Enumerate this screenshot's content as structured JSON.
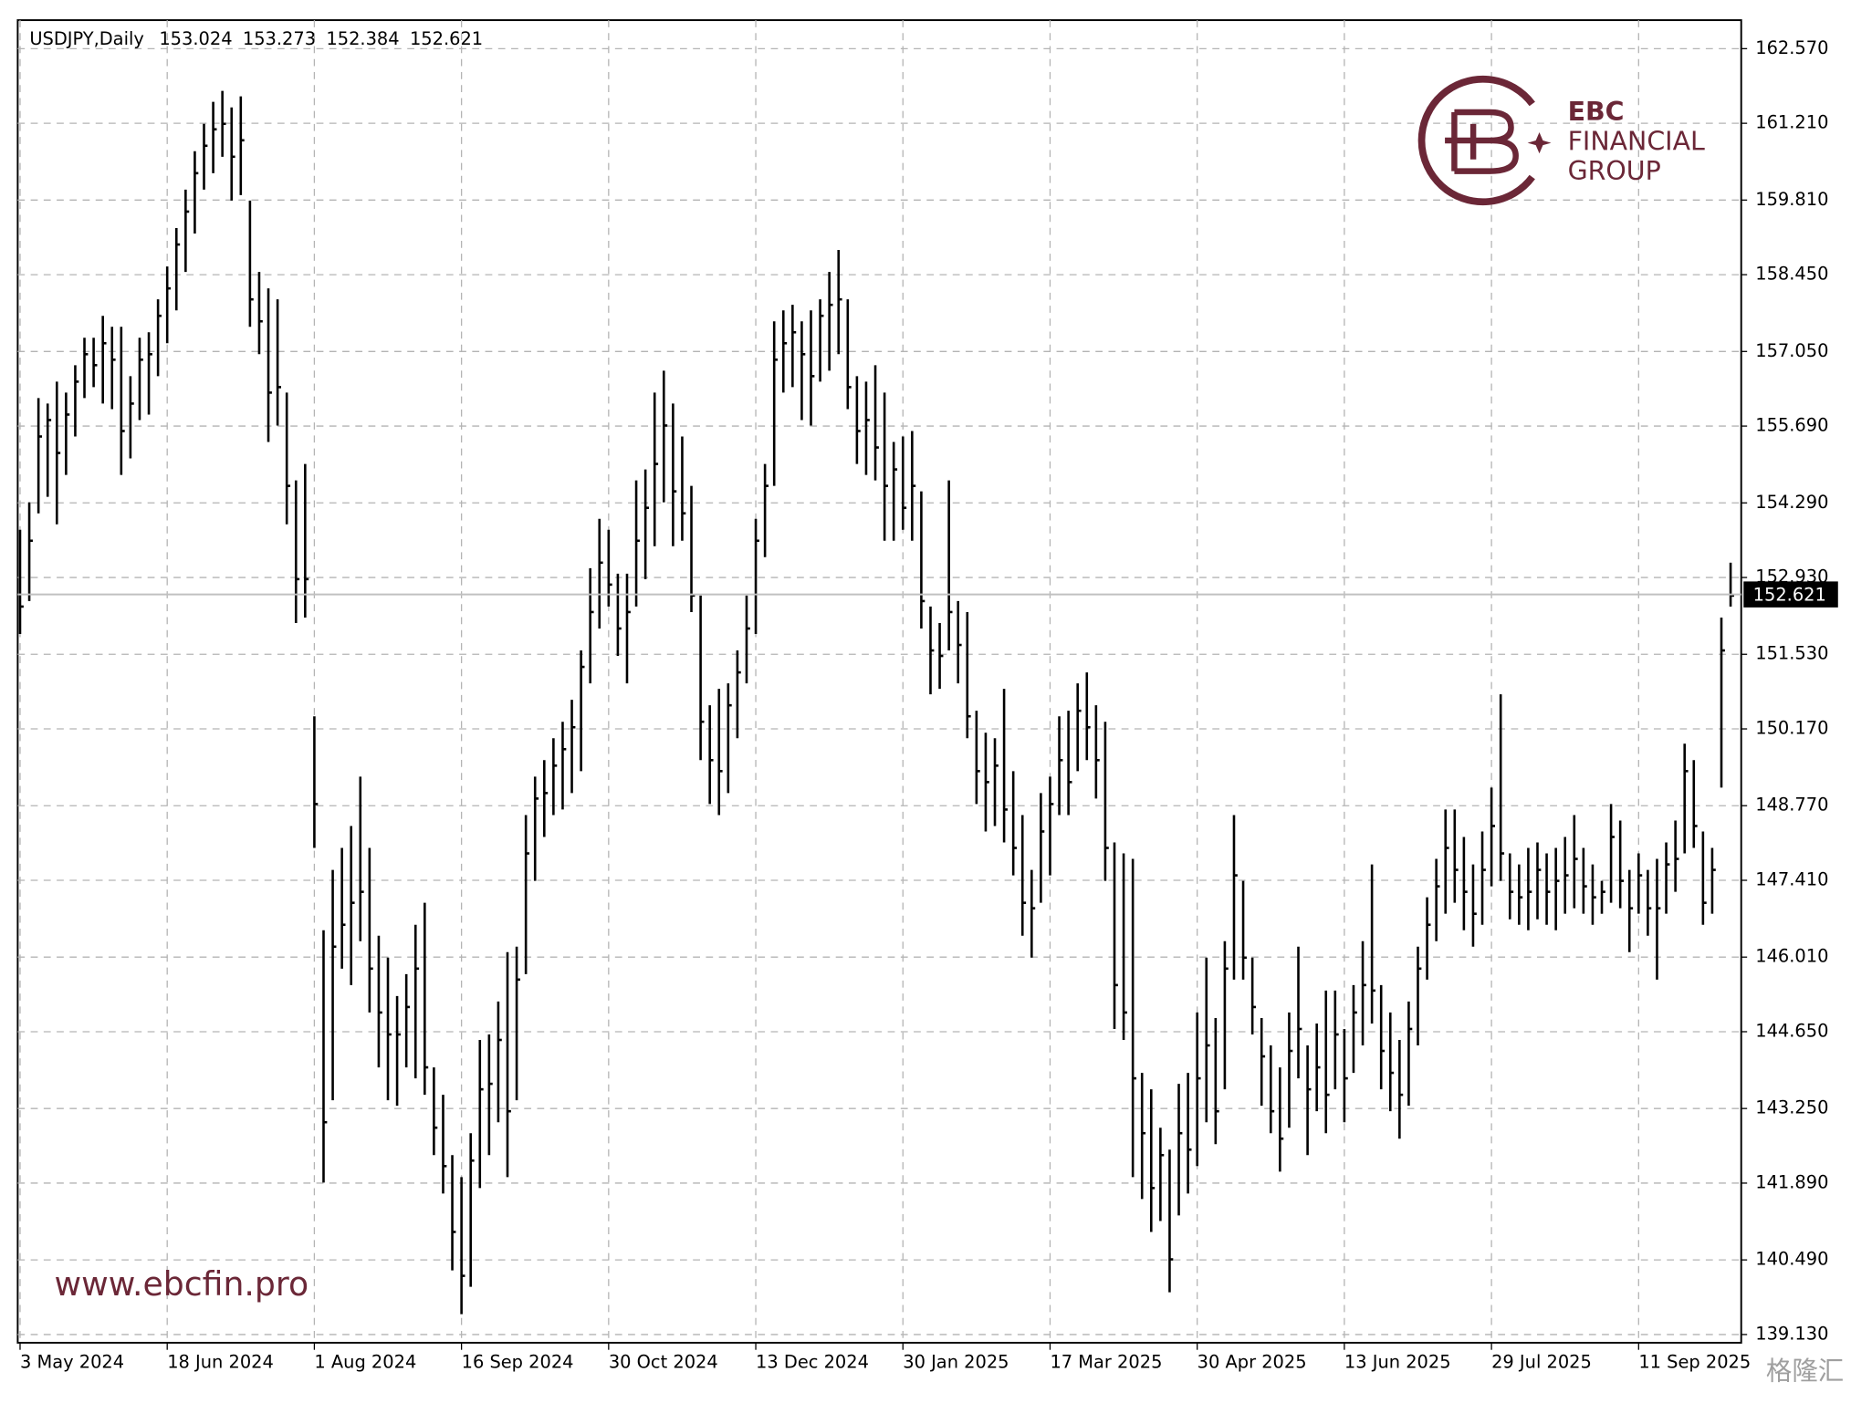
{
  "chart_data": {
    "type": "ohlc",
    "symbol": "USDJPY,Daily",
    "header_ohlc": [
      153.024,
      153.273,
      152.384,
      152.621
    ],
    "brand": {
      "short": "EBC",
      "line1": "FINANCIAL",
      "line2": "GROUP",
      "website": "www.ebcfin.pro"
    },
    "watermark": "格隆汇",
    "bar_color": "#000000",
    "grid": true,
    "ylim": [
      138.98,
      163.09
    ],
    "yticks": [
      {
        "value": 162.57,
        "label": "162.570"
      },
      {
        "value": 161.21,
        "label": "161.210"
      },
      {
        "value": 159.81,
        "label": "159.810"
      },
      {
        "value": 158.45,
        "label": "158.450"
      },
      {
        "value": 157.05,
        "label": "157.050"
      },
      {
        "value": 155.69,
        "label": "155.690"
      },
      {
        "value": 154.29,
        "label": "154.290"
      },
      {
        "value": 152.93,
        "label": "152.930"
      },
      {
        "value": 151.53,
        "label": "151.530"
      },
      {
        "value": 150.17,
        "label": "150.170"
      },
      {
        "value": 148.77,
        "label": "148.770"
      },
      {
        "value": 147.41,
        "label": "147.410"
      },
      {
        "value": 146.01,
        "label": "146.010"
      },
      {
        "value": 144.65,
        "label": "144.650"
      },
      {
        "value": 143.25,
        "label": "143.250"
      },
      {
        "value": 141.89,
        "label": "141.890"
      },
      {
        "value": 140.49,
        "label": "140.490"
      },
      {
        "value": 139.13,
        "label": "139.130"
      }
    ],
    "categories": [
      "3 May 2024",
      null,
      null,
      null,
      null,
      null,
      null,
      null,
      null,
      null,
      null,
      null,
      null,
      null,
      null,
      null,
      "18 Jun 2024",
      null,
      null,
      null,
      null,
      null,
      null,
      null,
      null,
      null,
      null,
      null,
      null,
      null,
      null,
      null,
      "1 Aug 2024",
      null,
      null,
      null,
      null,
      null,
      null,
      null,
      null,
      null,
      null,
      null,
      null,
      null,
      null,
      null,
      "16 Sep 2024",
      null,
      null,
      null,
      null,
      null,
      null,
      null,
      null,
      null,
      null,
      null,
      null,
      null,
      null,
      null,
      "30 Oct 2024",
      null,
      null,
      null,
      null,
      null,
      null,
      null,
      null,
      null,
      null,
      null,
      null,
      null,
      null,
      null,
      "13 Dec 2024",
      null,
      null,
      null,
      null,
      null,
      null,
      null,
      null,
      null,
      null,
      null,
      null,
      null,
      null,
      null,
      "30 Jan 2025",
      null,
      null,
      null,
      null,
      null,
      null,
      null,
      null,
      null,
      null,
      null,
      null,
      null,
      null,
      null,
      "17 Mar 2025",
      null,
      null,
      null,
      null,
      null,
      null,
      null,
      null,
      null,
      null,
      null,
      null,
      null,
      null,
      null,
      "30 Apr 2025",
      null,
      null,
      null,
      null,
      null,
      null,
      null,
      null,
      null,
      null,
      null,
      null,
      null,
      null,
      null,
      "13 Jun 2025",
      null,
      null,
      null,
      null,
      null,
      null,
      null,
      null,
      null,
      null,
      null,
      null,
      null,
      null,
      null,
      "29 Jul 2025",
      null,
      null,
      null,
      null,
      null,
      null,
      null,
      null,
      null,
      null,
      null,
      null,
      null,
      null,
      null,
      "11 Sep 2025",
      null,
      null,
      null,
      null,
      null,
      null,
      null,
      null,
      null,
      null
    ],
    "high": [
      153.8,
      154.3,
      156.2,
      156.1,
      156.5,
      156.3,
      156.8,
      157.3,
      157.3,
      157.7,
      157.5,
      157.5,
      156.6,
      157.3,
      157.4,
      158.0,
      158.6,
      159.3,
      160.0,
      160.7,
      161.2,
      161.6,
      161.8,
      161.5,
      161.7,
      159.8,
      158.5,
      158.2,
      158.0,
      156.3,
      154.7,
      155.0,
      150.4,
      146.5,
      147.6,
      148.0,
      148.4,
      149.3,
      148.0,
      146.4,
      146.0,
      145.3,
      145.7,
      146.6,
      147.0,
      144.0,
      143.5,
      142.4,
      142.0,
      142.8,
      144.5,
      144.6,
      145.2,
      146.1,
      146.2,
      148.6,
      149.3,
      149.6,
      150.0,
      150.3,
      150.7,
      151.6,
      153.1,
      154.0,
      153.8,
      153.0,
      153.0,
      154.7,
      154.9,
      156.3,
      156.7,
      156.1,
      155.5,
      154.6,
      152.6,
      150.6,
      150.9,
      151.0,
      151.6,
      152.6,
      154.0,
      155.0,
      157.6,
      157.8,
      157.9,
      157.6,
      157.8,
      158.0,
      158.5,
      158.9,
      158.0,
      156.6,
      156.5,
      156.8,
      156.3,
      155.4,
      155.5,
      155.6,
      154.5,
      152.4,
      152.1,
      154.7,
      152.5,
      152.3,
      150.5,
      150.1,
      150.0,
      150.9,
      149.4,
      148.6,
      147.6,
      149.0,
      149.3,
      150.4,
      150.5,
      151.0,
      151.2,
      150.6,
      150.3,
      148.1,
      147.9,
      147.8,
      143.9,
      143.6,
      142.9,
      142.5,
      143.7,
      143.9,
      145.0,
      146.0,
      144.9,
      146.3,
      148.6,
      147.4,
      146.0,
      144.9,
      144.4,
      144.0,
      145.0,
      146.2,
      144.4,
      144.8,
      145.4,
      145.4,
      144.7,
      145.5,
      146.3,
      147.7,
      145.5,
      145.0,
      144.5,
      145.2,
      146.2,
      147.1,
      147.8,
      148.7,
      148.7,
      148.2,
      147.7,
      148.3,
      149.1,
      150.8,
      147.9,
      147.7,
      148.0,
      148.1,
      147.9,
      148.0,
      148.2,
      148.6,
      148.0,
      147.7,
      147.4,
      148.8,
      148.5,
      147.6,
      147.9,
      147.6,
      147.8,
      148.1,
      148.5,
      149.9,
      149.6,
      148.3,
      148.0,
      152.2,
      153.2
    ],
    "low": [
      151.9,
      152.5,
      154.1,
      154.4,
      153.9,
      154.8,
      155.5,
      156.2,
      156.4,
      156.1,
      156.0,
      154.8,
      155.1,
      155.8,
      155.9,
      156.6,
      157.2,
      157.8,
      158.5,
      159.2,
      160.0,
      160.3,
      160.6,
      159.8,
      159.9,
      157.5,
      157.0,
      155.4,
      155.7,
      153.9,
      152.1,
      152.2,
      148.0,
      141.9,
      143.4,
      145.8,
      145.5,
      146.3,
      145.0,
      144.0,
      143.4,
      143.3,
      144.0,
      143.8,
      143.5,
      142.4,
      141.7,
      140.3,
      139.5,
      140.0,
      141.8,
      142.4,
      143.0,
      142.0,
      143.4,
      145.7,
      147.4,
      148.2,
      148.6,
      148.7,
      149.0,
      149.4,
      151.0,
      152.0,
      152.4,
      151.5,
      151.0,
      152.4,
      152.9,
      153.5,
      154.3,
      153.5,
      153.6,
      152.3,
      149.6,
      148.8,
      148.6,
      149.0,
      150.0,
      151.0,
      151.9,
      153.3,
      154.6,
      156.3,
      156.4,
      155.8,
      155.7,
      156.5,
      156.7,
      157.0,
      156.0,
      155.0,
      154.8,
      154.7,
      153.6,
      153.6,
      153.8,
      153.6,
      152.0,
      150.8,
      150.9,
      151.6,
      151.0,
      150.0,
      148.8,
      148.3,
      148.4,
      148.1,
      147.5,
      146.4,
      146.0,
      147.0,
      147.5,
      148.6,
      148.6,
      149.4,
      149.6,
      148.9,
      147.4,
      144.7,
      144.5,
      142.0,
      141.6,
      141.0,
      141.2,
      139.9,
      141.3,
      141.7,
      142.2,
      143.0,
      142.6,
      143.6,
      145.6,
      145.6,
      144.6,
      143.3,
      142.8,
      142.1,
      142.9,
      143.8,
      142.4,
      143.2,
      142.8,
      143.6,
      143.0,
      143.9,
      144.4,
      144.8,
      143.6,
      143.2,
      142.7,
      143.3,
      144.4,
      145.6,
      146.3,
      146.8,
      147.0,
      146.5,
      146.2,
      146.6,
      147.3,
      147.4,
      146.7,
      146.6,
      146.5,
      146.7,
      146.6,
      146.5,
      146.8,
      146.9,
      146.8,
      146.6,
      146.8,
      147.0,
      146.9,
      146.1,
      146.8,
      146.4,
      145.6,
      146.8,
      147.2,
      147.9,
      148.0,
      146.6,
      146.8,
      149.1,
      152.4
    ],
    "close": [
      152.4,
      153.6,
      155.5,
      155.8,
      155.2,
      155.9,
      156.5,
      157.0,
      156.8,
      157.2,
      156.9,
      155.6,
      156.1,
      156.9,
      157.0,
      157.7,
      158.2,
      159.0,
      159.6,
      160.3,
      160.8,
      161.1,
      161.2,
      160.6,
      160.9,
      158.0,
      157.6,
      156.3,
      156.4,
      154.6,
      152.9,
      152.9,
      148.8,
      143.0,
      146.2,
      146.6,
      147.0,
      147.2,
      145.8,
      145.0,
      144.6,
      144.6,
      145.1,
      145.8,
      144.0,
      142.9,
      142.2,
      141.0,
      140.2,
      142.3,
      143.6,
      143.7,
      144.5,
      143.2,
      145.6,
      147.9,
      148.9,
      149.0,
      149.5,
      149.8,
      150.2,
      151.3,
      152.3,
      153.2,
      152.8,
      152.0,
      152.3,
      153.6,
      154.2,
      155.0,
      155.7,
      154.5,
      154.1,
      152.6,
      150.3,
      149.6,
      149.4,
      150.6,
      151.2,
      152.0,
      153.6,
      154.6,
      156.9,
      157.2,
      157.4,
      157.0,
      156.6,
      157.7,
      157.9,
      158.0,
      156.4,
      155.6,
      155.8,
      155.3,
      154.6,
      154.9,
      154.2,
      154.6,
      152.5,
      151.6,
      151.5,
      152.3,
      151.7,
      150.4,
      149.4,
      149.2,
      149.5,
      148.7,
      148.0,
      147.0,
      146.9,
      148.3,
      148.8,
      149.6,
      149.2,
      150.5,
      150.2,
      149.6,
      148.0,
      145.5,
      145.0,
      143.8,
      142.8,
      141.8,
      142.4,
      140.5,
      142.8,
      142.5,
      143.8,
      144.4,
      143.2,
      145.8,
      147.5,
      146.0,
      145.1,
      144.2,
      143.2,
      142.7,
      144.3,
      144.7,
      143.6,
      144.0,
      143.5,
      144.6,
      143.8,
      145.0,
      145.5,
      145.4,
      144.3,
      143.9,
      143.5,
      144.7,
      145.8,
      146.6,
      147.3,
      148.0,
      147.6,
      147.2,
      146.8,
      147.6,
      148.4,
      147.9,
      147.2,
      147.1,
      147.2,
      147.6,
      147.2,
      147.4,
      147.5,
      147.8,
      147.3,
      147.1,
      147.2,
      148.2,
      147.4,
      146.9,
      147.5,
      146.9,
      146.9,
      147.7,
      147.8,
      149.4,
      148.4,
      147.0,
      147.6,
      151.6,
      152.6
    ]
  }
}
